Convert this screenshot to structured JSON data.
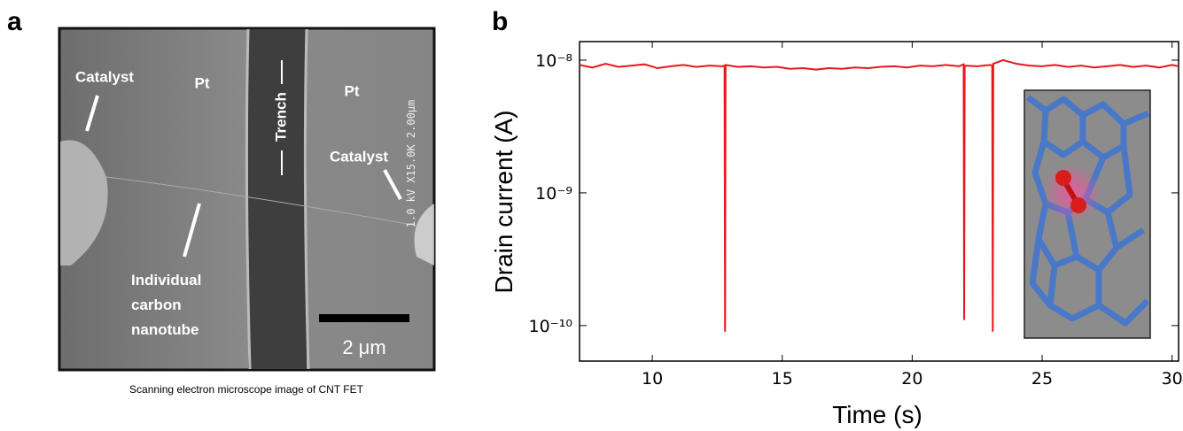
{
  "panel_a": {
    "label": "a",
    "annotations": [
      "Catalyst",
      "Pt",
      "Trench",
      "Pt",
      "Catalyst"
    ],
    "nanotube_label": [
      "Individual",
      "carbon",
      "nanotube"
    ],
    "scale_bar": "2 μm",
    "instrument_text": "1.0 kV X15.0K 2.00µm",
    "caption": "Scanning electron microscope image of CNT FET"
  },
  "chart_data": {
    "type": "line",
    "panel_label": "b",
    "x_label": "Time (s)",
    "y_label": "Drain current (A)",
    "yscale": "log",
    "xlim": [
      7.2,
      30.25
    ],
    "ylim": [
      5.4e-11,
      1.38e-08
    ],
    "xticks": [
      10,
      15,
      20,
      25,
      30
    ],
    "yticks": [
      {
        "value": 1e-10,
        "label": "10⁻¹⁰"
      },
      {
        "value": 1e-09,
        "label": "10⁻⁹"
      },
      {
        "value": 1e-08,
        "label": "10⁻⁸"
      }
    ],
    "series": [
      {
        "color": "#e8171b",
        "x": [
          7.2,
          7.7,
          8.2,
          8.7,
          9.2,
          9.7,
          10.2,
          10.7,
          11.2,
          11.7,
          12.2,
          12.7,
          12.78,
          12.8,
          12.82,
          13.3,
          13.8,
          14.3,
          14.8,
          15.3,
          15.8,
          16.3,
          16.8,
          17.3,
          17.8,
          18.3,
          18.8,
          19.3,
          19.8,
          20.3,
          20.8,
          21.3,
          21.8,
          21.98,
          22.0,
          22.02,
          22.5,
          23.0,
          23.08,
          23.1,
          23.12,
          23.5,
          24.0,
          24.5,
          25.0,
          25.5,
          26.0,
          26.5,
          27.0,
          27.5,
          28.0,
          28.5,
          29.0,
          29.5,
          30.0,
          30.25
        ],
        "values": [
          9.2e-09,
          8.8e-09,
          9.4e-09,
          8.9e-09,
          9.1e-09,
          9.3e-09,
          8.7e-09,
          9e-09,
          9.2e-09,
          8.9e-09,
          9.1e-09,
          9e-09,
          9.1e-09,
          9e-11,
          9.2e-09,
          8.9e-09,
          9e-09,
          8.8e-09,
          8.9e-09,
          8.6e-09,
          8.7e-09,
          8.5e-09,
          8.7e-09,
          8.6e-09,
          8.8e-09,
          8.7e-09,
          8.9e-09,
          9e-09,
          8.8e-09,
          9.1e-09,
          9e-09,
          9.2e-09,
          9e-09,
          9.3e-09,
          1.1e-10,
          9.1e-09,
          9e-09,
          9.2e-09,
          9.1e-09,
          9e-11,
          9.4e-09,
          1e-08,
          9.4e-09,
          9.1e-09,
          9e-09,
          9.2e-09,
          8.9e-09,
          9.1e-09,
          8.8e-09,
          9e-09,
          9.2e-09,
          8.9e-09,
          9.1e-09,
          8.8e-09,
          9.2e-09,
          9e-09
        ]
      }
    ]
  }
}
